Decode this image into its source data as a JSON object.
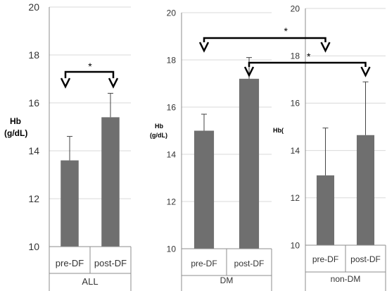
{
  "chart_data": [
    {
      "type": "bar",
      "title": "",
      "xlabel": "ALL",
      "ylabel": "Hb (g/dL)",
      "ylim": [
        10,
        20
      ],
      "yticks": [
        10,
        12,
        14,
        16,
        18,
        20
      ],
      "categories": [
        "pre-DF",
        "post-DF"
      ],
      "values": [
        13.6,
        15.4
      ],
      "error_upper": [
        14.6,
        16.4
      ],
      "grid": true,
      "annotations": [
        {
          "text": "*",
          "between": [
            "pre-DF",
            "post-DF"
          ]
        }
      ]
    },
    {
      "type": "bar",
      "title": "",
      "xlabel": "DM",
      "ylabel": "Hb (g/dL)",
      "ylim": [
        10,
        20
      ],
      "yticks": [
        10,
        12,
        14,
        16,
        18,
        20
      ],
      "categories": [
        "pre-DF",
        "post-DF"
      ],
      "values": [
        15.0,
        17.2
      ],
      "error_upper": [
        15.7,
        18.1
      ],
      "grid": true
    },
    {
      "type": "bar",
      "title": "",
      "xlabel": "non-DM",
      "ylabel": "Hb(",
      "ylim": [
        10,
        20
      ],
      "yticks": [
        10,
        12,
        14,
        16,
        18,
        20
      ],
      "categories": [
        "pre-DF",
        "post-DF"
      ],
      "values": [
        12.95,
        14.65
      ],
      "error_upper": [
        14.95,
        16.9
      ],
      "grid": true
    }
  ],
  "comparisons": [
    {
      "text": "*",
      "from": "DM pre-DF",
      "to": "non-DM pre-DF"
    },
    {
      "text": "*",
      "from": "DM post-DF",
      "to": "non-DM post-DF"
    }
  ],
  "ylabel_lines": {
    "all": [
      "Hb",
      "(g/dL)"
    ],
    "dm": [
      "Hb",
      "(g/dL)"
    ],
    "nondm": [
      "Hb("
    ]
  },
  "colors": {
    "bar": "#6f6f6f",
    "grid": "#d9d9d9",
    "axis": "#8c8c8c",
    "arrow": "#000000"
  }
}
